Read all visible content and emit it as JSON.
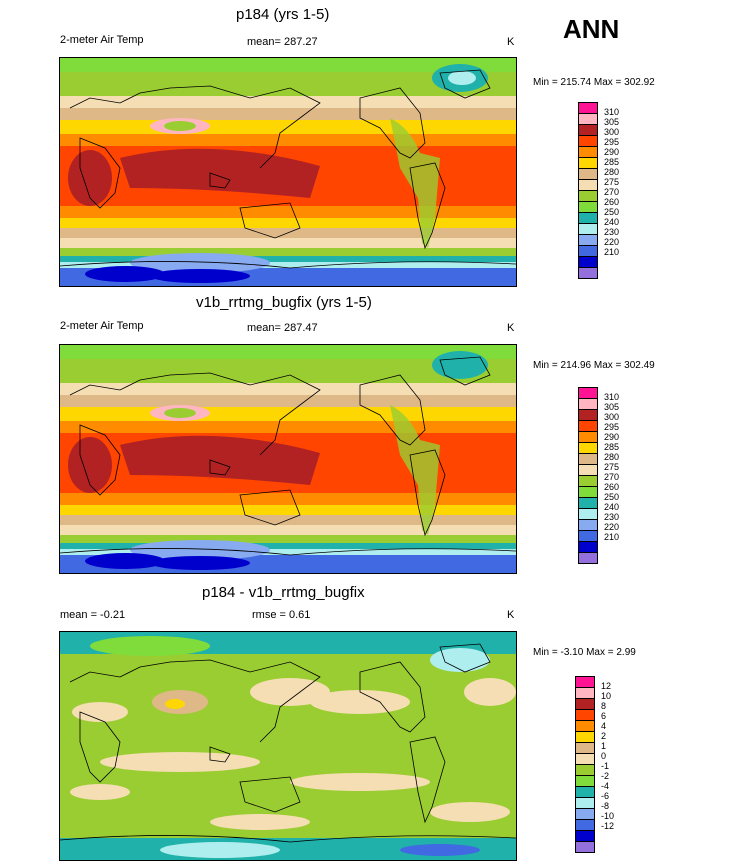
{
  "season": "ANN",
  "panels": [
    {
      "title": "p184 (yrs 1-5)",
      "left_label": "2-meter Air Temp",
      "center_label": "mean= 287.27",
      "units": "K",
      "minmax": "Min = 215.74 Max = 302.92",
      "kind": "abs",
      "colorbar_labels": [
        "310",
        "305",
        "300",
        "295",
        "290",
        "285",
        "280",
        "275",
        "270",
        "260",
        "250",
        "240",
        "230",
        "220",
        "210"
      ]
    },
    {
      "title": "v1b_rrtmg_bugfix (yrs 1-5)",
      "left_label": "2-meter Air Temp",
      "center_label": "mean= 287.47",
      "units": "K",
      "minmax": "Min = 214.96 Max = 302.49",
      "kind": "abs",
      "colorbar_labels": [
        "310",
        "305",
        "300",
        "295",
        "290",
        "285",
        "280",
        "275",
        "270",
        "260",
        "250",
        "240",
        "230",
        "220",
        "210"
      ]
    },
    {
      "title": "p184 - v1b_rrtmg_bugfix",
      "left_label": "mean =  -0.21",
      "center_label": "rmse =   0.61",
      "units": "K",
      "minmax": "Min =  -3.10 Max =   2.99",
      "kind": "diff",
      "colorbar_labels": [
        "12",
        "10",
        "8",
        "6",
        "4",
        "2",
        "1",
        "0",
        "-1",
        "-2",
        "-4",
        "-6",
        "-8",
        "-10",
        "-12"
      ]
    }
  ],
  "colors": {
    "abs_scale": [
      "#ff1493",
      "#ffb6c1",
      "#b22222",
      "#ff4500",
      "#ff8c00",
      "#ffd700",
      "#deb887",
      "#f5deb3",
      "#9acd32",
      "#7fdc3a",
      "#20b2aa",
      "#afeeee",
      "#87aaf0",
      "#4169e1",
      "#0000cd",
      "#9370db"
    ],
    "diff_scale": [
      "#ff1493",
      "#ffb6c1",
      "#b22222",
      "#ff4500",
      "#ff8c00",
      "#ffd700",
      "#deb887",
      "#f5deb3",
      "#9acd32",
      "#7fdc3a",
      "#20b2aa",
      "#afeeee",
      "#87aaf0",
      "#4169e1",
      "#0000cd",
      "#9370db"
    ]
  }
}
